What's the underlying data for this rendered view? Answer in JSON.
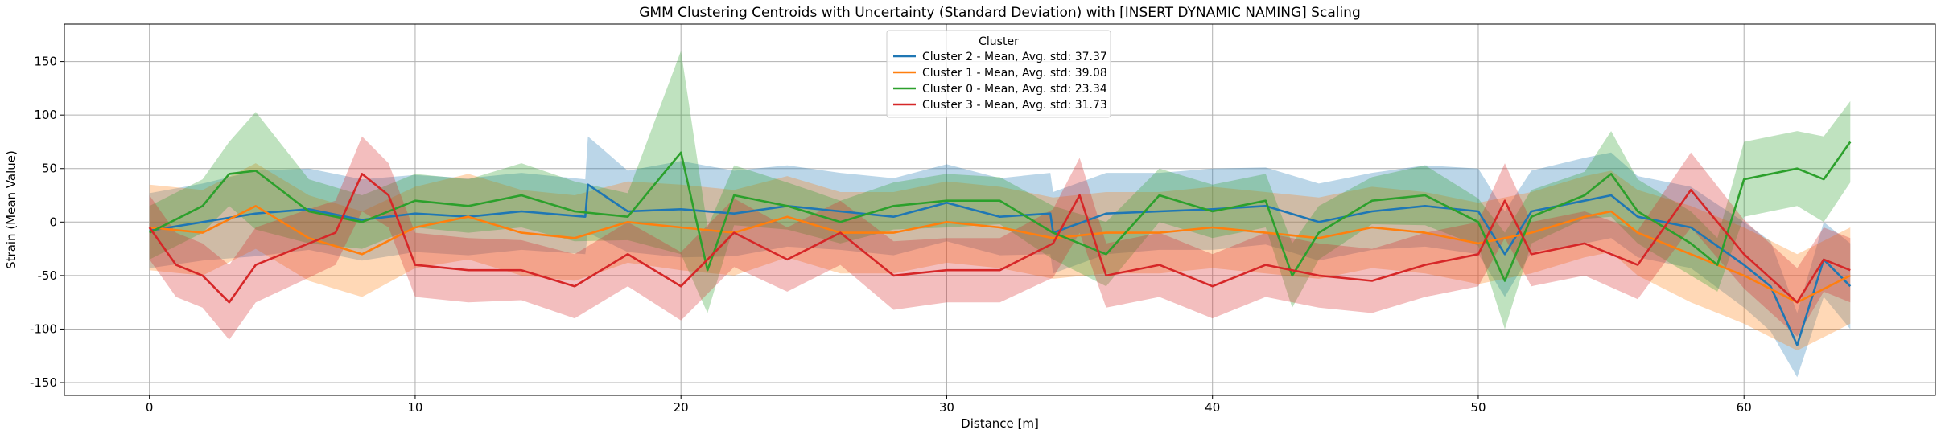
{
  "chart_data": {
    "type": "line",
    "title": "GMM Clustering Centroids with Uncertainty (Standard Deviation) with [INSERT DYNAMIC NAMING] Scaling",
    "xlabel": "Distance [m]",
    "ylabel": "Strain (Mean Value)",
    "xlim": [
      -3.2,
      67.2
    ],
    "ylim": [
      -162,
      185
    ],
    "xticks": [
      0,
      10,
      20,
      30,
      40,
      50,
      60
    ],
    "yticks": [
      -150,
      -100,
      -50,
      0,
      50,
      100,
      150
    ],
    "grid": true,
    "legend": {
      "title": "Cluster",
      "placement": "upper center"
    },
    "series": [
      {
        "name": "Cluster 2 - Mean, Avg. std: 37.37",
        "color": "#1f77b4",
        "x": [
          0,
          2,
          4,
          6,
          8,
          10,
          12,
          14,
          16.4,
          16.5,
          18,
          20,
          22,
          24,
          26,
          28,
          30,
          32,
          33.9,
          34,
          36,
          38,
          40,
          42,
          44,
          46,
          48,
          50,
          51,
          52,
          54,
          55,
          56,
          58,
          60,
          61,
          62,
          63,
          64
        ],
        "y": [
          -8,
          0,
          8,
          12,
          2,
          8,
          5,
          10,
          5,
          35,
          10,
          12,
          8,
          15,
          10,
          5,
          18,
          5,
          8,
          -10,
          8,
          10,
          12,
          15,
          0,
          10,
          15,
          10,
          -30,
          10,
          20,
          25,
          5,
          -5,
          -40,
          -60,
          -115,
          -35,
          -60
        ],
        "std": [
          35,
          36,
          40,
          38,
          38,
          36,
          36,
          36,
          35,
          45,
          38,
          45,
          40,
          38,
          36,
          36,
          36,
          36,
          38,
          38,
          38,
          36,
          38,
          36,
          36,
          36,
          38,
          40,
          40,
          38,
          40,
          40,
          38,
          38,
          40,
          42,
          30,
          35,
          40
        ]
      },
      {
        "name": "Cluster 1 - Mean, Avg. std: 39.08",
        "color": "#ff7f0e",
        "x": [
          0,
          2,
          4,
          6,
          8,
          10,
          12,
          14,
          16,
          18,
          20,
          22,
          24,
          26,
          28,
          30,
          32,
          34,
          36,
          38,
          40,
          42,
          44,
          46,
          48,
          50,
          52,
          54,
          55,
          56,
          58,
          60,
          62,
          64
        ],
        "y": [
          -5,
          -10,
          15,
          -15,
          -30,
          -5,
          5,
          -10,
          -15,
          0,
          -5,
          -10,
          5,
          -10,
          -10,
          0,
          -5,
          -15,
          -10,
          -10,
          -5,
          -10,
          -15,
          -5,
          -10,
          -20,
          -10,
          5,
          10,
          -10,
          -30,
          -50,
          -75,
          -50
        ],
        "std": [
          40,
          40,
          40,
          40,
          40,
          38,
          40,
          40,
          40,
          38,
          40,
          40,
          38,
          38,
          38,
          38,
          38,
          38,
          38,
          38,
          38,
          38,
          38,
          38,
          38,
          38,
          38,
          38,
          38,
          40,
          45,
          45,
          45,
          45
        ]
      },
      {
        "name": "Cluster 0 - Mean, Avg. std: 23.34",
        "color": "#2ca02c",
        "x": [
          0,
          2,
          3,
          4,
          6,
          8,
          10,
          12,
          14,
          16,
          18,
          20,
          21,
          22,
          24,
          26,
          28,
          30,
          32,
          34,
          36,
          38,
          40,
          42,
          43,
          44,
          46,
          48,
          50,
          51,
          52,
          54,
          55,
          56,
          58,
          59,
          60,
          62,
          63,
          64
        ],
        "y": [
          -10,
          15,
          45,
          48,
          10,
          0,
          20,
          15,
          25,
          10,
          5,
          65,
          -45,
          25,
          15,
          0,
          15,
          20,
          20,
          -10,
          -30,
          25,
          10,
          20,
          -50,
          -10,
          20,
          25,
          0,
          -55,
          5,
          25,
          45,
          10,
          -20,
          -40,
          40,
          50,
          40,
          75
        ],
        "std": [
          25,
          25,
          30,
          55,
          30,
          25,
          25,
          25,
          30,
          28,
          22,
          95,
          40,
          28,
          22,
          20,
          22,
          25,
          22,
          25,
          30,
          25,
          25,
          25,
          30,
          25,
          22,
          28,
          22,
          45,
          25,
          22,
          40,
          30,
          30,
          25,
          35,
          35,
          40,
          38
        ]
      },
      {
        "name": "Cluster 3 - Mean, Avg. std: 31.73",
        "color": "#d62728",
        "x": [
          0,
          1,
          2,
          3,
          4,
          6,
          7,
          8,
          9,
          10,
          12,
          14,
          16,
          18,
          20,
          22,
          24,
          26,
          28,
          30,
          32,
          34,
          35,
          36,
          38,
          40,
          42,
          44,
          46,
          48,
          50,
          51,
          52,
          54,
          56,
          58,
          60,
          62,
          63,
          64
        ],
        "y": [
          -5,
          -40,
          -50,
          -75,
          -40,
          -20,
          -10,
          45,
          25,
          -40,
          -45,
          -45,
          -60,
          -30,
          -60,
          -10,
          -35,
          -10,
          -50,
          -45,
          -45,
          -20,
          25,
          -50,
          -40,
          -60,
          -40,
          -50,
          -55,
          -40,
          -30,
          20,
          -30,
          -20,
          -40,
          30,
          -30,
          -75,
          -35,
          -45
        ],
        "std": [
          30,
          30,
          30,
          35,
          35,
          32,
          30,
          35,
          30,
          30,
          30,
          28,
          30,
          30,
          32,
          32,
          30,
          30,
          32,
          30,
          30,
          32,
          35,
          30,
          30,
          30,
          30,
          30,
          30,
          30,
          30,
          35,
          30,
          30,
          32,
          35,
          32,
          32,
          30,
          30
        ]
      }
    ]
  }
}
